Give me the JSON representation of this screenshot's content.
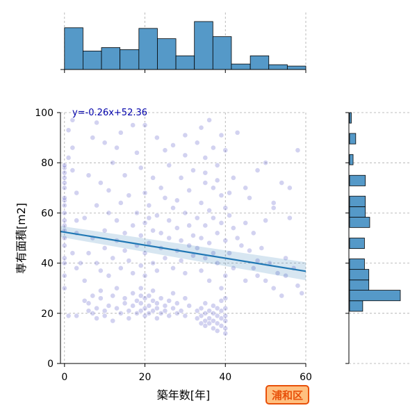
{
  "chart_data": {
    "type": "scatter",
    "xlabel": "築年数[年]",
    "ylabel": "専有面積[m2]",
    "x_ticks": [
      "0",
      "20",
      "40",
      "60"
    ],
    "y_ticks": [
      "0",
      "20",
      "40",
      "60",
      "80",
      "100"
    ],
    "xlim": [
      -1,
      60
    ],
    "ylim": [
      0,
      100
    ],
    "grid": true,
    "grid_style": "dashed",
    "regression": {
      "label": "y=-0.26x+52.36",
      "slope": -0.26,
      "intercept": 52.36,
      "color": "#1f77b4",
      "label_color": "#0000aa"
    },
    "badge": {
      "label": "浦和区",
      "fill": "#ffc080",
      "border": "#e8500a",
      "text_color": "#e8500a"
    },
    "point_color": "#3333bb",
    "hist_color": "#5599c8",
    "hist_x": {
      "bin_edges": [
        0,
        4.6,
        9.2,
        13.8,
        18.5,
        23.1,
        27.7,
        32.3,
        36.9,
        41.5,
        46.2,
        50.8,
        55.4,
        60
      ],
      "counts": [
        61,
        27,
        32,
        29,
        60,
        45,
        20,
        70,
        48,
        8,
        20,
        7,
        5
      ]
    },
    "hist_y": {
      "bin_edges": [
        0,
        4.2,
        8.3,
        12.5,
        16.7,
        20.8,
        25,
        29.2,
        33.3,
        37.5,
        41.7,
        45.8,
        50,
        54.2,
        58.3,
        62.5,
        66.7,
        70.8,
        75,
        79.2,
        83.3,
        87.5,
        91.7,
        95.8,
        100
      ],
      "counts": [
        0,
        0,
        0,
        0,
        0,
        15,
        58,
        22,
        22,
        17,
        0,
        17,
        0,
        23,
        18,
        18,
        0,
        18,
        0,
        4,
        0,
        7,
        0,
        2
      ]
    },
    "points": [
      [
        0,
        30
      ],
      [
        0,
        35
      ],
      [
        0,
        40
      ],
      [
        0,
        42
      ],
      [
        0,
        47
      ],
      [
        0,
        50
      ],
      [
        0,
        53
      ],
      [
        0,
        55
      ],
      [
        0,
        57
      ],
      [
        0,
        60
      ],
      [
        0,
        63
      ],
      [
        0,
        65
      ],
      [
        0,
        66
      ],
      [
        0,
        70
      ],
      [
        0,
        72
      ],
      [
        0,
        74
      ],
      [
        0,
        76
      ],
      [
        0,
        78
      ],
      [
        0,
        79
      ],
      [
        1,
        82
      ],
      [
        1,
        93
      ],
      [
        2,
        97
      ],
      [
        2,
        86
      ],
      [
        2,
        77
      ],
      [
        3,
        68
      ],
      [
        3,
        57
      ],
      [
        3,
        52
      ],
      [
        2,
        44
      ],
      [
        1,
        19
      ],
      [
        3,
        19
      ],
      [
        3,
        38
      ],
      [
        4,
        40
      ],
      [
        5,
        25
      ],
      [
        6,
        24
      ],
      [
        6,
        21
      ],
      [
        7,
        27
      ],
      [
        7,
        20
      ],
      [
        8,
        22
      ],
      [
        8,
        18
      ],
      [
        9,
        26
      ],
      [
        9,
        29
      ],
      [
        10,
        21
      ],
      [
        10,
        19
      ],
      [
        11,
        23
      ],
      [
        12,
        27
      ],
      [
        12,
        17
      ],
      [
        13,
        30
      ],
      [
        13,
        22
      ],
      [
        14,
        20
      ],
      [
        15,
        24
      ],
      [
        15,
        26
      ],
      [
        16,
        21
      ],
      [
        16,
        18
      ],
      [
        17,
        23
      ],
      [
        17,
        28
      ],
      [
        18,
        20
      ],
      [
        18,
        25
      ],
      [
        19,
        21
      ],
      [
        19,
        24
      ],
      [
        19,
        27
      ],
      [
        19,
        30
      ],
      [
        20,
        19
      ],
      [
        20,
        22
      ],
      [
        20,
        26
      ],
      [
        21,
        20
      ],
      [
        21,
        23
      ],
      [
        21,
        27
      ],
      [
        22,
        21
      ],
      [
        22,
        25
      ],
      [
        22,
        29
      ],
      [
        23,
        18
      ],
      [
        23,
        22
      ],
      [
        23,
        24
      ],
      [
        24,
        20
      ],
      [
        24,
        26
      ],
      [
        25,
        21
      ],
      [
        25,
        23
      ],
      [
        26,
        19
      ],
      [
        26,
        25
      ],
      [
        27,
        22
      ],
      [
        27,
        28
      ],
      [
        28,
        20
      ],
      [
        28,
        24
      ],
      [
        29,
        21
      ],
      [
        30,
        19
      ],
      [
        30,
        26
      ],
      [
        31,
        23
      ],
      [
        33,
        18
      ],
      [
        33,
        21
      ],
      [
        34,
        16
      ],
      [
        34,
        19
      ],
      [
        34,
        22
      ],
      [
        35,
        15
      ],
      [
        35,
        17
      ],
      [
        35,
        20
      ],
      [
        35,
        24
      ],
      [
        36,
        16
      ],
      [
        36,
        18
      ],
      [
        36,
        21
      ],
      [
        37,
        14
      ],
      [
        37,
        17
      ],
      [
        37,
        20
      ],
      [
        37,
        23
      ],
      [
        38,
        13
      ],
      [
        38,
        16
      ],
      [
        38,
        19
      ],
      [
        38,
        22
      ],
      [
        39,
        15
      ],
      [
        39,
        18
      ],
      [
        39,
        21
      ],
      [
        39,
        25
      ],
      [
        40,
        12
      ],
      [
        40,
        14
      ],
      [
        40,
        17
      ],
      [
        40,
        19
      ],
      [
        40,
        22
      ],
      [
        40,
        26
      ],
      [
        5,
        33
      ],
      [
        6,
        44
      ],
      [
        7,
        50
      ],
      [
        8,
        40
      ],
      [
        8,
        63
      ],
      [
        9,
        37
      ],
      [
        10,
        46
      ],
      [
        10,
        53
      ],
      [
        11,
        35
      ],
      [
        11,
        60
      ],
      [
        12,
        42
      ],
      [
        13,
        49
      ],
      [
        13,
        57
      ],
      [
        14,
        38
      ],
      [
        14,
        64
      ],
      [
        15,
        45
      ],
      [
        15,
        52
      ],
      [
        16,
        41
      ],
      [
        17,
        55
      ],
      [
        17,
        36
      ],
      [
        18,
        47
      ],
      [
        18,
        60
      ],
      [
        19,
        39
      ],
      [
        19,
        51
      ],
      [
        20,
        35
      ],
      [
        20,
        44
      ],
      [
        20,
        56
      ],
      [
        21,
        48
      ],
      [
        21,
        63
      ],
      [
        22,
        40
      ],
      [
        22,
        53
      ],
      [
        23,
        37
      ],
      [
        23,
        59
      ],
      [
        24,
        46
      ],
      [
        24,
        52
      ],
      [
        25,
        42
      ],
      [
        25,
        66
      ],
      [
        26,
        50
      ],
      [
        26,
        57
      ],
      [
        27,
        38
      ],
      [
        27,
        62
      ],
      [
        28,
        45
      ],
      [
        28,
        54
      ],
      [
        29,
        41
      ],
      [
        29,
        49
      ],
      [
        30,
        60
      ],
      [
        30,
        36
      ],
      [
        31,
        47
      ],
      [
        31,
        55
      ],
      [
        32,
        43
      ],
      [
        32,
        51
      ],
      [
        33,
        58
      ],
      [
        33,
        46
      ],
      [
        34,
        64
      ],
      [
        34,
        50
      ],
      [
        34,
        37
      ],
      [
        35,
        55
      ],
      [
        35,
        72
      ],
      [
        35,
        76
      ],
      [
        35,
        42
      ],
      [
        36,
        61
      ],
      [
        36,
        48
      ],
      [
        36,
        33
      ],
      [
        37,
        70
      ],
      [
        37,
        58
      ],
      [
        37,
        44
      ],
      [
        38,
        73
      ],
      [
        38,
        52
      ],
      [
        38,
        40
      ],
      [
        39,
        67
      ],
      [
        39,
        56
      ],
      [
        39,
        30
      ],
      [
        40,
        62
      ],
      [
        40,
        49
      ],
      [
        40,
        35
      ],
      [
        41,
        59
      ],
      [
        41,
        44
      ],
      [
        42,
        54
      ],
      [
        42,
        38
      ],
      [
        43,
        50
      ],
      [
        44,
        47
      ],
      [
        45,
        56
      ],
      [
        45,
        33
      ],
      [
        46,
        45
      ],
      [
        47,
        52
      ],
      [
        47,
        38
      ],
      [
        48,
        41
      ],
      [
        48,
        35
      ],
      [
        49,
        46
      ],
      [
        50,
        33
      ],
      [
        50,
        57
      ],
      [
        51,
        40
      ],
      [
        52,
        30
      ],
      [
        52,
        62
      ],
      [
        53,
        36
      ],
      [
        54,
        27
      ],
      [
        55,
        42
      ],
      [
        55,
        35
      ],
      [
        56,
        58
      ],
      [
        57,
        38
      ],
      [
        58,
        31
      ],
      [
        59,
        28
      ],
      [
        5,
        58
      ],
      [
        6,
        75
      ],
      [
        7,
        90
      ],
      [
        8,
        96
      ],
      [
        9,
        72
      ],
      [
        10,
        88
      ],
      [
        11,
        69
      ],
      [
        12,
        80
      ],
      [
        13,
        86
      ],
      [
        14,
        92
      ],
      [
        15,
        75
      ],
      [
        16,
        67
      ],
      [
        17,
        95
      ],
      [
        18,
        84
      ],
      [
        19,
        78
      ],
      [
        20,
        68
      ],
      [
        20,
        95
      ],
      [
        21,
        58
      ],
      [
        22,
        74
      ],
      [
        23,
        90
      ],
      [
        24,
        70
      ],
      [
        25,
        85
      ],
      [
        26,
        79
      ],
      [
        27,
        87
      ],
      [
        28,
        65
      ],
      [
        29,
        74
      ],
      [
        30,
        83
      ],
      [
        30,
        91
      ],
      [
        31,
        69
      ],
      [
        32,
        77
      ],
      [
        33,
        88
      ],
      [
        34,
        94
      ],
      [
        35,
        82
      ],
      [
        36,
        97
      ],
      [
        37,
        86
      ],
      [
        38,
        79
      ],
      [
        39,
        91
      ],
      [
        40,
        85
      ],
      [
        41,
        68
      ],
      [
        42,
        74
      ],
      [
        43,
        92
      ],
      [
        45,
        70
      ],
      [
        46,
        66
      ],
      [
        48,
        77
      ],
      [
        50,
        80
      ],
      [
        52,
        64
      ],
      [
        54,
        72
      ],
      [
        56,
        70
      ],
      [
        58,
        85
      ]
    ]
  }
}
